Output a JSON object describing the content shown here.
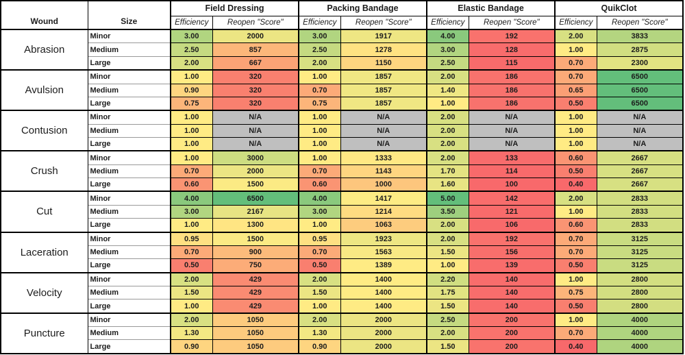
{
  "chart_data": {
    "type": "heatmap-table",
    "header": {
      "wound": "Wound",
      "size": "Size",
      "groups": [
        "Field Dressing",
        "Packing Bandage",
        "Elastic Bandage",
        "QuikClot"
      ],
      "sub": {
        "efficiency": "Efficiency",
        "reopen": "Reopen \"Score\""
      }
    },
    "column_order_per_group": [
      "Efficiency",
      "Reopen \"Score\""
    ],
    "na_label": "N/A",
    "heatmap": {
      "red": "#F8696B",
      "yellow": "#FFEB84",
      "green": "#63BE7B",
      "na_gray": "#BFBFBF",
      "border_black": "#000000",
      "grid_gray": "#999999",
      "efficiency_scale": {
        "min": 0.4,
        "mid": 1.0,
        "max": 5.0
      },
      "reopen_scale": {
        "min": 100,
        "mid": 1361,
        "max": 6500
      }
    },
    "wounds": [
      {
        "name": "Abrasion",
        "rows": [
          {
            "size": "Minor",
            "values": [
              "3.00",
              "2000",
              "3.00",
              "1917",
              "4.00",
              "192",
              "2.00",
              "3833"
            ]
          },
          {
            "size": "Medium",
            "values": [
              "2.50",
              "857",
              "2.50",
              "1278",
              "3.00",
              "128",
              "1.00",
              "2875"
            ]
          },
          {
            "size": "Large",
            "values": [
              "2.00",
              "667",
              "2.00",
              "1150",
              "2.50",
              "115",
              "0.70",
              "2300"
            ]
          }
        ]
      },
      {
        "name": "Avulsion",
        "rows": [
          {
            "size": "Minor",
            "values": [
              "1.00",
              "320",
              "1.00",
              "1857",
              "2.00",
              "186",
              "0.70",
              "6500"
            ]
          },
          {
            "size": "Medium",
            "values": [
              "0.90",
              "320",
              "0.70",
              "1857",
              "1.40",
              "186",
              "0.65",
              "6500"
            ]
          },
          {
            "size": "Large",
            "values": [
              "0.75",
              "320",
              "0.75",
              "1857",
              "1.00",
              "186",
              "0.50",
              "6500"
            ]
          }
        ]
      },
      {
        "name": "Contusion",
        "rows": [
          {
            "size": "Minor",
            "values": [
              "1.00",
              "N/A",
              "1.00",
              "N/A",
              "2.00",
              "N/A",
              "1.00",
              "N/A"
            ]
          },
          {
            "size": "Medium",
            "values": [
              "1.00",
              "N/A",
              "1.00",
              "N/A",
              "2.00",
              "N/A",
              "1.00",
              "N/A"
            ]
          },
          {
            "size": "Large",
            "values": [
              "1.00",
              "N/A",
              "1.00",
              "N/A",
              "2.00",
              "N/A",
              "1.00",
              "N/A"
            ]
          }
        ]
      },
      {
        "name": "Crush",
        "rows": [
          {
            "size": "Minor",
            "values": [
              "1.00",
              "3000",
              "1.00",
              "1333",
              "2.00",
              "133",
              "0.60",
              "2667"
            ]
          },
          {
            "size": "Medium",
            "values": [
              "0.70",
              "2000",
              "0.70",
              "1143",
              "1.70",
              "114",
              "0.50",
              "2667"
            ]
          },
          {
            "size": "Large",
            "values": [
              "0.60",
              "1500",
              "0.60",
              "1000",
              "1.60",
              "100",
              "0.40",
              "2667"
            ]
          }
        ]
      },
      {
        "name": "Cut",
        "rows": [
          {
            "size": "Minor",
            "values": [
              "4.00",
              "6500",
              "4.00",
              "1417",
              "5.00",
              "142",
              "2.00",
              "2833"
            ]
          },
          {
            "size": "Medium",
            "values": [
              "3.00",
              "2167",
              "3.00",
              "1214",
              "3.50",
              "121",
              "1.00",
              "2833"
            ]
          },
          {
            "size": "Large",
            "values": [
              "1.00",
              "1300",
              "1.00",
              "1063",
              "2.00",
              "106",
              "0.60",
              "2833"
            ]
          }
        ]
      },
      {
        "name": "Laceration",
        "rows": [
          {
            "size": "Minor",
            "values": [
              "0.95",
              "1500",
              "0.95",
              "1923",
              "2.00",
              "192",
              "0.70",
              "3125"
            ]
          },
          {
            "size": "Medium",
            "values": [
              "0.70",
              "900",
              "0.70",
              "1563",
              "1.50",
              "156",
              "0.70",
              "3125"
            ]
          },
          {
            "size": "Large",
            "values": [
              "0.50",
              "750",
              "0.50",
              "1389",
              "1.00",
              "139",
              "0.50",
              "3125"
            ]
          }
        ]
      },
      {
        "name": "Velocity",
        "rows": [
          {
            "size": "Minor",
            "values": [
              "2.00",
              "429",
              "2.00",
              "1400",
              "2.20",
              "140",
              "1.00",
              "2800"
            ]
          },
          {
            "size": "Medium",
            "values": [
              "1.50",
              "429",
              "1.50",
              "1400",
              "1.75",
              "140",
              "0.75",
              "2800"
            ]
          },
          {
            "size": "Large",
            "values": [
              "1.00",
              "429",
              "1.00",
              "1400",
              "1.50",
              "140",
              "0.50",
              "2800"
            ]
          }
        ]
      },
      {
        "name": "Puncture",
        "rows": [
          {
            "size": "Minor",
            "values": [
              "2.00",
              "1050",
              "2.00",
              "2000",
              "2.50",
              "200",
              "1.00",
              "4000"
            ]
          },
          {
            "size": "Medium",
            "values": [
              "1.30",
              "1050",
              "1.30",
              "2000",
              "2.00",
              "200",
              "0.70",
              "4000"
            ]
          },
          {
            "size": "Large",
            "values": [
              "0.90",
              "1050",
              "0.90",
              "2000",
              "1.50",
              "200",
              "0.40",
              "4000"
            ]
          }
        ]
      }
    ]
  }
}
